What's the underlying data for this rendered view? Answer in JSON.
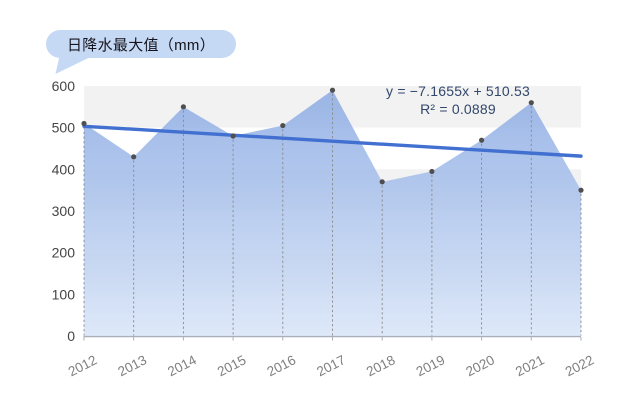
{
  "title": "日降水最大值（mm）",
  "equation": {
    "formula": "y = −7.1655x + 510.53",
    "r_squared": "R² = 0.0889"
  },
  "chart_data": {
    "type": "area",
    "title": "日降水最大值（mm）",
    "categories": [
      "2012",
      "2013",
      "2014",
      "2015",
      "2016",
      "2017",
      "2018",
      "2019",
      "2020",
      "2021",
      "2022"
    ],
    "values": [
      510,
      430,
      550,
      480,
      505,
      590,
      370,
      395,
      470,
      560,
      350
    ],
    "xlabel": "",
    "ylabel": "",
    "ylim": [
      0,
      600
    ],
    "ytick_step": 100,
    "grid": "horizontal-bands",
    "legend_position": "none",
    "trendline": {
      "type": "linear",
      "slope": -7.1655,
      "intercept": 510.53,
      "r2": 0.0889,
      "label": "y = −7.1655x + 510.53",
      "r2_label": "R² = 0.0889"
    },
    "marker": "dot-with-dashed-dropline"
  },
  "colors": {
    "callout_bg": "#c6d9f4",
    "title_text": "#15151f",
    "band_gray": "#f2f2f2",
    "band_white": "#ffffff",
    "fill_top": "#86a7e2",
    "fill_bottom": "#dce7f8",
    "trend_line": "#4270d0",
    "dot": "#4f4f4f",
    "drop_line": "#8a8a8a",
    "axis_line": "#aab0ba",
    "y_label": "#454545",
    "x_label": "#808080",
    "equation_text": "#32476b"
  }
}
